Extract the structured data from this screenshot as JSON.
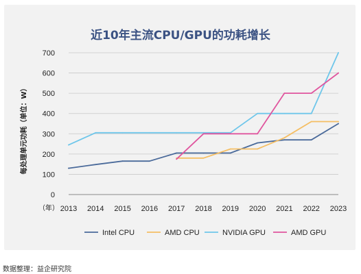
{
  "source_label": "数据整理：",
  "source_name": "益企研究院",
  "chart_data": {
    "type": "line",
    "title": "近10年主流CPU/GPU的功耗增长",
    "ylabel": "每处理单元功耗（单位：W）",
    "x_prefix": "（年）",
    "x": [
      2013,
      2014,
      2015,
      2016,
      2017,
      2018,
      2019,
      2020,
      2021,
      2022,
      2023
    ],
    "ylim": [
      0,
      700
    ],
    "yticks": [
      0,
      100,
      200,
      300,
      400,
      500,
      600,
      700
    ],
    "grid": true,
    "legend_position": "bottom",
    "series": [
      {
        "name": "Intel CPU",
        "color": "#4a6a9a",
        "points": [
          [
            2013,
            130
          ],
          [
            2014,
            148
          ],
          [
            2015,
            165
          ],
          [
            2016,
            165
          ],
          [
            2017,
            205
          ],
          [
            2018,
            205
          ],
          [
            2019,
            205
          ],
          [
            2020,
            255
          ],
          [
            2021,
            270
          ],
          [
            2022,
            270
          ],
          [
            2023,
            350
          ]
        ]
      },
      {
        "name": "AMD CPU",
        "color": "#f5be63",
        "points": [
          [
            2017,
            180
          ],
          [
            2018,
            180
          ],
          [
            2019,
            225
          ],
          [
            2020,
            225
          ],
          [
            2021,
            280
          ],
          [
            2022,
            360
          ],
          [
            2023,
            360
          ]
        ]
      },
      {
        "name": "NVIDIA GPU",
        "color": "#6ec6ea",
        "points": [
          [
            2013,
            245
          ],
          [
            2014,
            305
          ],
          [
            2015,
            305
          ],
          [
            2016,
            305
          ],
          [
            2017,
            305
          ],
          [
            2018,
            305
          ],
          [
            2019,
            305
          ],
          [
            2020,
            400
          ],
          [
            2021,
            400
          ],
          [
            2022,
            400
          ],
          [
            2023,
            700
          ]
        ]
      },
      {
        "name": "AMD GPU",
        "color": "#e0559e",
        "points": [
          [
            2017,
            175
          ],
          [
            2018,
            300
          ],
          [
            2019,
            300
          ],
          [
            2020,
            300
          ],
          [
            2021,
            500
          ],
          [
            2022,
            500
          ],
          [
            2023,
            600
          ]
        ]
      }
    ]
  }
}
